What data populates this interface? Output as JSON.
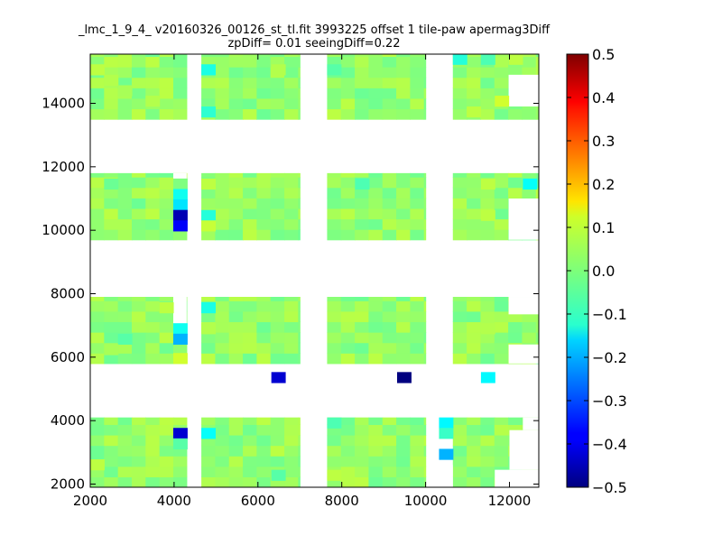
{
  "chart_data": {
    "type": "heatmap",
    "title": "_lmc_1_9_4_ v20160326_00126_st_tl.fit 3993225 offset 1 tile-paw apermag3Diff",
    "subtitle": "zpDiff= 0.01 seeingDiff=0.22",
    "xlabel": "",
    "ylabel": "",
    "xlim": [
      2000,
      12700
    ],
    "ylim": [
      1900,
      15550
    ],
    "x_ticks": [
      2000,
      4000,
      6000,
      8000,
      10000,
      12000
    ],
    "y_ticks": [
      2000,
      4000,
      6000,
      8000,
      10000,
      12000,
      14000
    ],
    "x_tick_labels": [
      "2000",
      "4000",
      "6000",
      "8000",
      "10000",
      "12000"
    ],
    "y_tick_labels": [
      "2000",
      "4000",
      "6000",
      "8000",
      "10000",
      "12000",
      "14000"
    ],
    "colorbar": {
      "colormap": "jet",
      "vmin": -0.5,
      "vmax": 0.5,
      "ticks": [
        0.5,
        0.4,
        0.3,
        0.2,
        0.1,
        0.0,
        -0.1,
        -0.2,
        -0.3,
        -0.4,
        -0.5
      ],
      "tick_labels": [
        "0.5",
        "0.4",
        "0.3",
        "0.2",
        "0.1",
        "0.0",
        "−0.1",
        "−0.2",
        "−0.3",
        "−0.4",
        "−0.5"
      ]
    },
    "grid": false,
    "cell_size": 330,
    "detector_blocks": {
      "x_ranges": [
        [
          2000,
          4300
        ],
        [
          4650,
          7000
        ],
        [
          7650,
          10000
        ],
        [
          10650,
          12700
        ]
      ],
      "y_ranges": [
        [
          1900,
          4100
        ],
        [
          5800,
          7900
        ],
        [
          9700,
          11800
        ],
        [
          13500,
          15550
        ]
      ],
      "base_value": 0.02
    },
    "cells": [
      {
        "x": 2000,
        "y": 14900,
        "value": 0.06
      },
      {
        "x": 2330,
        "y": 14570,
        "value": 0.05
      },
      {
        "x": 2660,
        "y": 14240,
        "value": 0.04
      },
      {
        "x": 3320,
        "y": 13910,
        "value": 0.05
      },
      {
        "x": 4650,
        "y": 14900,
        "value": -0.1
      },
      {
        "x": 4650,
        "y": 13570,
        "value": -0.08
      },
      {
        "x": 6320,
        "y": 14900,
        "value": 0.05
      },
      {
        "x": 7650,
        "y": 14900,
        "value": -0.04
      },
      {
        "x": 10650,
        "y": 15230,
        "value": -0.09
      },
      {
        "x": 11320,
        "y": 15230,
        "value": -0.05
      },
      {
        "x": 11980,
        "y": 15230,
        "value": 0.06
      },
      {
        "x": 11650,
        "y": 13910,
        "value": 0.08
      },
      {
        "x": 10980,
        "y": 13570,
        "value": 0.06
      },
      {
        "x": 2330,
        "y": 11300,
        "value": -0.02
      },
      {
        "x": 3650,
        "y": 11300,
        "value": 0.05
      },
      {
        "x": 3980,
        "y": 11300,
        "value": 0.0
      },
      {
        "x": 3980,
        "y": 10970,
        "value": -0.11
      },
      {
        "x": 3980,
        "y": 10640,
        "value": -0.15
      },
      {
        "x": 3980,
        "y": 10310,
        "value": -0.45
      },
      {
        "x": 3980,
        "y": 9980,
        "value": -0.38
      },
      {
        "x": 4650,
        "y": 10310,
        "value": -0.09
      },
      {
        "x": 4650,
        "y": 9980,
        "value": 0.07
      },
      {
        "x": 4650,
        "y": 11300,
        "value": 0.06
      },
      {
        "x": 8320,
        "y": 11300,
        "value": -0.05
      },
      {
        "x": 11320,
        "y": 11300,
        "value": 0.06
      },
      {
        "x": 12320,
        "y": 11300,
        "value": -0.12
      },
      {
        "x": 11320,
        "y": 10310,
        "value": 0.06
      },
      {
        "x": 3650,
        "y": 7400,
        "value": 0.06
      },
      {
        "x": 3980,
        "y": 6740,
        "value": -0.11
      },
      {
        "x": 3980,
        "y": 6410,
        "value": -0.2
      },
      {
        "x": 3980,
        "y": 5800,
        "value": 0.08
      },
      {
        "x": 4650,
        "y": 7400,
        "value": -0.1
      },
      {
        "x": 4650,
        "y": 6740,
        "value": 0.05
      },
      {
        "x": 2660,
        "y": 6410,
        "value": -0.04
      },
      {
        "x": 2330,
        "y": 6080,
        "value": 0.04
      },
      {
        "x": 11320,
        "y": 6740,
        "value": 0.05
      },
      {
        "x": 6320,
        "y": 5200,
        "value": -0.42
      },
      {
        "x": 9320,
        "y": 5200,
        "value": -0.5
      },
      {
        "x": 11320,
        "y": 5200,
        "value": -0.13
      },
      {
        "x": 3980,
        "y": 3440,
        "value": -0.42
      },
      {
        "x": 3980,
        "y": 3110,
        "value": -0.04
      },
      {
        "x": 4650,
        "y": 3440,
        "value": -0.12
      },
      {
        "x": 7650,
        "y": 3770,
        "value": -0.05
      },
      {
        "x": 10320,
        "y": 3770,
        "value": -0.13
      },
      {
        "x": 10320,
        "y": 3440,
        "value": -0.07
      },
      {
        "x": 10320,
        "y": 2780,
        "value": -0.2
      },
      {
        "x": 2000,
        "y": 2450,
        "value": 0.06
      },
      {
        "x": 6320,
        "y": 2120,
        "value": -0.04
      },
      {
        "x": 7650,
        "y": 2120,
        "value": 0.06
      }
    ],
    "blank_regions": [
      {
        "x_range": [
          11980,
          12700
        ],
        "y_range": [
          13900,
          14900
        ]
      },
      {
        "x_range": [
          11980,
          12700
        ],
        "y_range": [
          9700,
          11000
        ]
      },
      {
        "x_range": [
          11980,
          12700
        ],
        "y_range": [
          5800,
          6400
        ]
      },
      {
        "x_range": [
          11980,
          12700
        ],
        "y_range": [
          7350,
          7900
        ]
      },
      {
        "x_range": [
          11650,
          12700
        ],
        "y_range": [
          1900,
          2450
        ]
      },
      {
        "x_range": [
          12000,
          12700
        ],
        "y_range": [
          2450,
          3700
        ]
      },
      {
        "x_range": [
          12320,
          12700
        ],
        "y_range": [
          3700,
          4100
        ]
      },
      {
        "x_range": [
          3980,
          4300
        ],
        "y_range": [
          7000,
          7900
        ]
      },
      {
        "x_range": [
          3980,
          4300
        ],
        "y_range": [
          11500,
          11800
        ]
      },
      {
        "x_range": [
          10320,
          10650
        ],
        "y_range": [
          1900,
          2600
        ]
      }
    ]
  }
}
